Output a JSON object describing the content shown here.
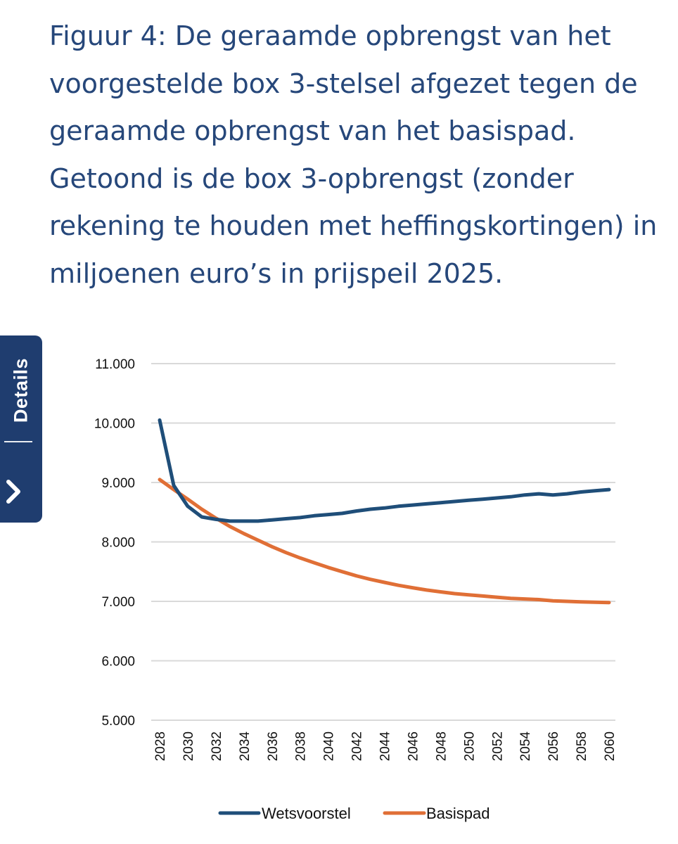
{
  "caption": "Figuur 4: De geraamde opbrengst van het voorgestelde box 3-stelsel afgezet tegen de geraamde opbrengst van het basispad. Getoond is de box 3-opbrengst (zonder rekening te houden met heffingskortingen) in miljoenen euro’s in prijspeil 2025.",
  "details_tab": {
    "label": "Details"
  },
  "colors": {
    "navy": "#1f3d6f",
    "wetsvoorstel": "#1f4e79",
    "basispad": "#e06f36",
    "grid": "#d9d9d9"
  },
  "chart_data": {
    "type": "line",
    "title": "",
    "xlabel": "",
    "ylabel": "",
    "ylim": [
      5000,
      11000
    ],
    "yticks": [
      5000,
      6000,
      7000,
      8000,
      9000,
      10000,
      11000
    ],
    "ytick_labels": [
      "5.000",
      "6.000",
      "7.000",
      "8.000",
      "9.000",
      "10.000",
      "11.000"
    ],
    "x": [
      2028,
      2029,
      2030,
      2031,
      2032,
      2033,
      2034,
      2035,
      2036,
      2037,
      2038,
      2039,
      2040,
      2041,
      2042,
      2043,
      2044,
      2045,
      2046,
      2047,
      2048,
      2049,
      2050,
      2051,
      2052,
      2053,
      2054,
      2055,
      2056,
      2057,
      2058,
      2059,
      2060
    ],
    "xtick_labels": [
      "2028",
      "2030",
      "2032",
      "2034",
      "2036",
      "2038",
      "2040",
      "2042",
      "2044",
      "2046",
      "2048",
      "2050",
      "2052",
      "2054",
      "2056",
      "2058",
      "2060"
    ],
    "legend_position": "bottom",
    "series": [
      {
        "name": "Wetsvoorstel",
        "color": "#1f4e79",
        "values": [
          10050,
          8950,
          8600,
          8420,
          8380,
          8350,
          8350,
          8350,
          8370,
          8390,
          8410,
          8440,
          8460,
          8480,
          8520,
          8550,
          8570,
          8600,
          8620,
          8640,
          8660,
          8680,
          8700,
          8720,
          8740,
          8760,
          8790,
          8810,
          8790,
          8810,
          8840,
          8860,
          8880
        ]
      },
      {
        "name": "Basispad",
        "color": "#e06f36",
        "values": [
          9050,
          8880,
          8720,
          8550,
          8400,
          8260,
          8140,
          8030,
          7920,
          7820,
          7730,
          7650,
          7570,
          7500,
          7430,
          7370,
          7320,
          7270,
          7230,
          7190,
          7160,
          7130,
          7110,
          7090,
          7070,
          7050,
          7040,
          7030,
          7010,
          7000,
          6990,
          6985,
          6980
        ]
      }
    ]
  }
}
